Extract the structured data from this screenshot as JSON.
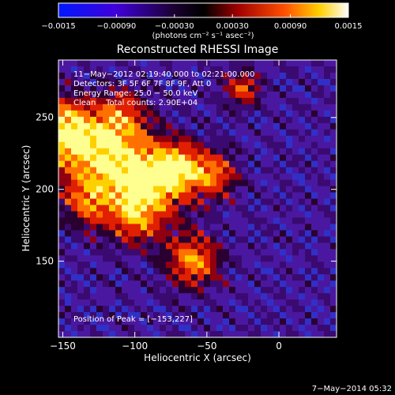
{
  "chart_data": {
    "type": "heatmap",
    "title": "Reconstructed RHESSI Image",
    "xlabel": "Heliocentric X (arcsec)",
    "ylabel": "Heliocentric Y (arcsec)",
    "xlim": [
      -153,
      40
    ],
    "ylim": [
      97,
      290
    ],
    "x_ticks": [
      -150,
      -100,
      -50,
      0
    ],
    "x_tick_labels": [
      "−150",
      "−100",
      "−50",
      "0"
    ],
    "y_ticks": [
      150,
      200,
      250
    ],
    "y_tick_labels": [
      "150",
      "200",
      "250"
    ],
    "colorbar": {
      "range": [
        -0.0015,
        0.0015
      ],
      "ticks": [
        -0.0015,
        -0.0009,
        -0.0003,
        0.0003,
        0.0009,
        0.0015
      ],
      "tick_labels": [
        "−0.0015",
        "−0.00090",
        "−0.00030",
        "0.00030",
        "0.00090",
        "0.0015"
      ],
      "unit_label": "(photons cm⁻² s⁻¹ asec⁻²)",
      "colors": [
        "#0000ff",
        "#5a00d0",
        "#000000",
        "#b00000",
        "#ff6000",
        "#ffff80",
        "#ffffff"
      ]
    },
    "annotations": [
      "11−May−2012 02:19:40.000 to 02:21:00.000",
      "Detectors: 3F 5F 6F 7F 8F 9F, Att 0",
      "Energy Range: 25.0 − 50.0 keV",
      "Clean    Total counts: 2.90E+04",
      "Position of Peak = [−153,227]"
    ],
    "peak": [
      -153,
      227
    ],
    "footer_date": "7−May−2014 05:32",
    "grid": false
  }
}
